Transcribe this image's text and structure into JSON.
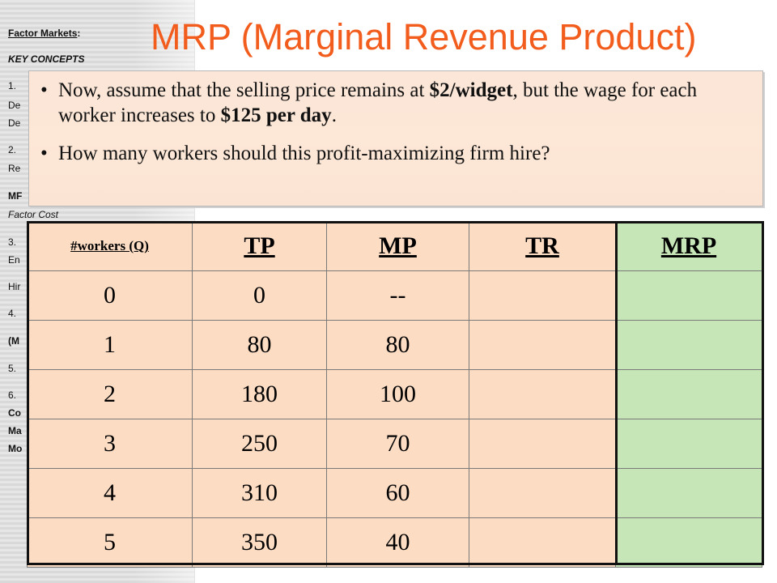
{
  "sidebar": {
    "heading": "Factor Markets",
    "heading_suffix": ":",
    "subheading": "KEY CONCEPTS",
    "items": [
      {
        "num": "1.",
        "lines": [
          "De",
          "De"
        ]
      },
      {
        "num": "2.",
        "lines": [
          "Re"
        ]
      },
      {
        "num": "MF",
        "lines": []
      },
      {
        "num": "Factor Cost",
        "lines": []
      },
      {
        "num": "3.",
        "lines": [
          "En"
        ]
      },
      {
        "num": "Hir",
        "lines": []
      },
      {
        "num": "4.",
        "lines": []
      },
      {
        "num": "(M",
        "lines": []
      },
      {
        "num": "5.",
        "lines": []
      },
      {
        "num": "6.",
        "lines": [
          "Co",
          "Ma",
          "Mo"
        ]
      }
    ]
  },
  "slide": {
    "title": "MRP (Marginal Revenue Product)"
  },
  "callout": {
    "bullet_1": {
      "pre": "Now, assume that the selling price remains at ",
      "bold_1": "$2/widget",
      "mid": ", but the wage for each worker increases to ",
      "bold_2": "$125 per day",
      "post": "."
    },
    "bullet_2": "How many workers should this profit-maximizing firm hire?"
  },
  "table": {
    "headers": [
      "#workers (Q)",
      "TP",
      "MP",
      "TR",
      "MRP"
    ],
    "rows": [
      [
        "0",
        "0",
        "--",
        "",
        ""
      ],
      [
        "1",
        "80",
        "80",
        "",
        ""
      ],
      [
        "2",
        "180",
        "100",
        "",
        ""
      ],
      [
        "3",
        "250",
        "70",
        "",
        ""
      ],
      [
        "4",
        "310",
        "60",
        "",
        ""
      ],
      [
        "5",
        "350",
        "40",
        "",
        ""
      ]
    ]
  },
  "colors": {
    "title": "#f25c1c",
    "table_fill": "#fcdcc3",
    "mrp_fill": "#c6e6b8"
  }
}
